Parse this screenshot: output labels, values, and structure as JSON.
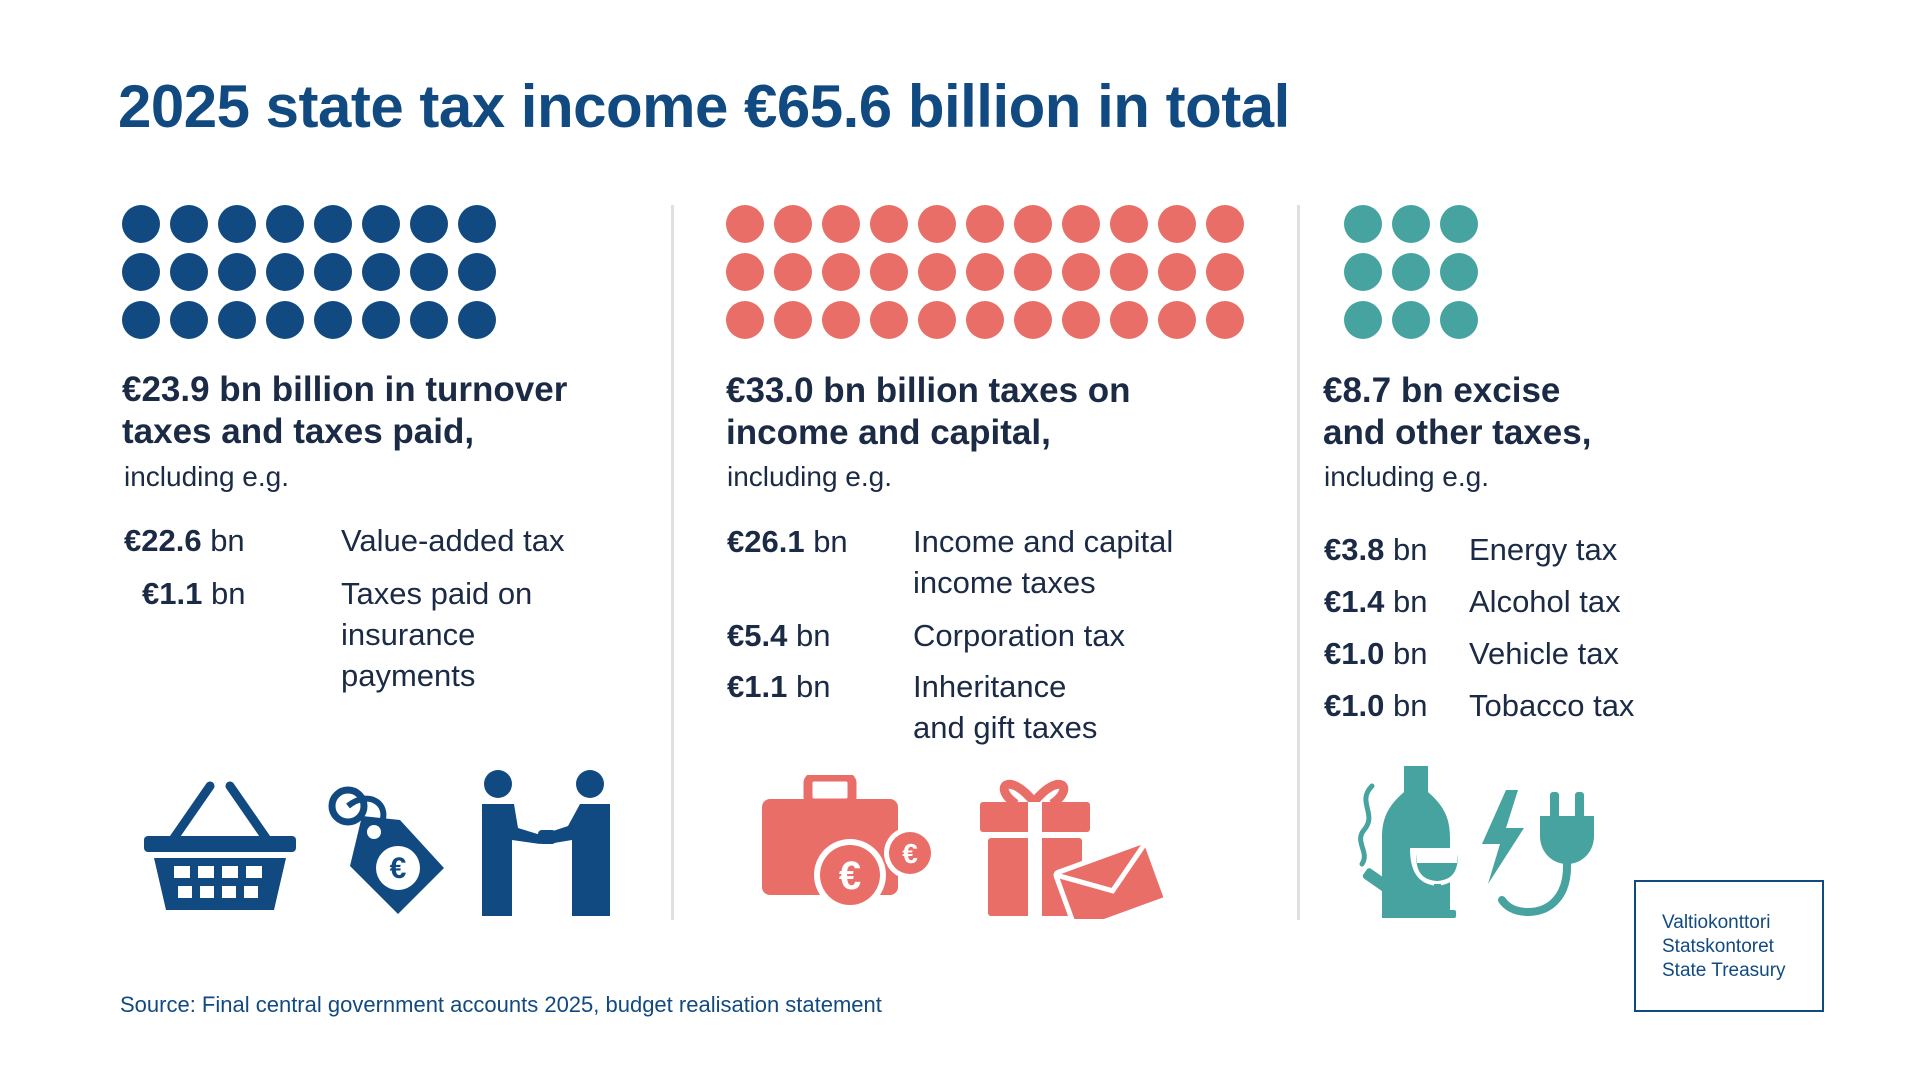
{
  "title": "2025 state tax income €65.6 billion in total",
  "colors": {
    "blue": "#114a80",
    "coral": "#ea6e68",
    "teal": "#46a3a0"
  },
  "columns": [
    {
      "dot_count": 24,
      "title_line1": "€23.9 bn billion in turnover",
      "title_line2": "taxes and taxes paid,",
      "subtitle": "including e.g.",
      "items": [
        {
          "amount_bold": "€22.6",
          "amount_unit": " bn",
          "label_lines": [
            "Value-added tax"
          ]
        },
        {
          "amount_bold": "€1.1",
          "amount_unit": " bn",
          "label_lines": [
            "Taxes paid on",
            "insurance",
            "payments"
          ]
        }
      ],
      "icons": [
        "shopping-basket-icon",
        "price-tag-euro-icon",
        "handshake-icon"
      ]
    },
    {
      "dot_count": 33,
      "title_line1": "€33.0 bn billion taxes on",
      "title_line2": "income and capital,",
      "subtitle": "including e.g.",
      "items": [
        {
          "amount_bold": "€26.1",
          "amount_unit": " bn",
          "label_lines": [
            "Income and capital",
            "income taxes"
          ]
        },
        {
          "amount_bold": "€5.4",
          "amount_unit": " bn",
          "label_lines": [
            "Corporation tax"
          ]
        },
        {
          "amount_bold": "€1.1",
          "amount_unit": " bn",
          "label_lines": [
            "Inheritance",
            "and gift taxes"
          ]
        }
      ],
      "icons": [
        "briefcase-euro-icon",
        "gift-envelope-icon"
      ]
    },
    {
      "dot_count": 9,
      "title_line1": "€8.7 bn excise",
      "title_line2": "and other taxes,",
      "subtitle": "including e.g.",
      "items": [
        {
          "amount_bold": "€3.8",
          "amount_unit": " bn",
          "label_lines": [
            "Energy tax"
          ]
        },
        {
          "amount_bold": "€1.4",
          "amount_unit": " bn",
          "label_lines": [
            "Alcohol tax"
          ]
        },
        {
          "amount_bold": "€1.0",
          "amount_unit": " bn",
          "label_lines": [
            "Vehicle tax"
          ]
        },
        {
          "amount_bold": "€1.0",
          "amount_unit": " bn",
          "label_lines": [
            "Tobacco tax"
          ]
        }
      ],
      "icons": [
        "bottle-glass-cigarette-icon",
        "lightning-plug-icon"
      ]
    }
  ],
  "source": "Source: Final central government accounts 2025, budget realisation statement",
  "logo": {
    "line1": "Valtiokonttori",
    "line2": "Statskontoret",
    "line3": "State Treasury"
  }
}
